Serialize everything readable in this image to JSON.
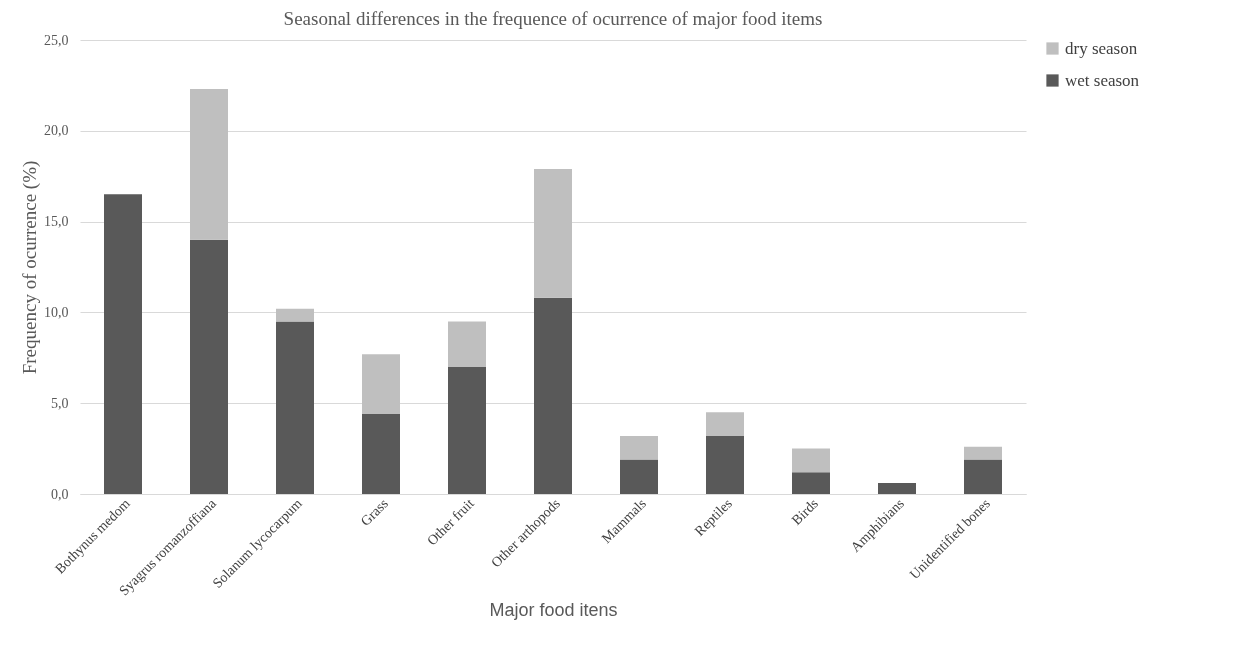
{
  "chart_data": {
    "type": "bar",
    "stacked": true,
    "title": "Seasonal differences in the frequence of ocurrence of major food items",
    "xlabel": "Major food itens",
    "ylabel": "Frequency of ocurrence (%)",
    "categories": [
      "Bothynus medom",
      "Syagrus romanzoffiana",
      "Solanum lycocarpum",
      "Grass",
      "Other fruit",
      "Other arthopods",
      "Mammals",
      "Reptiles",
      "Birds",
      "Amphibians",
      "Unidentified bones"
    ],
    "series": [
      {
        "name": "wet season",
        "color": "#595959",
        "values": [
          16.5,
          14.0,
          9.5,
          4.4,
          7.0,
          10.8,
          1.9,
          3.2,
          1.2,
          0.6,
          1.9
        ]
      },
      {
        "name": "dry season",
        "color": "#bfbfbf",
        "values": [
          0,
          8.3,
          0.7,
          3.3,
          2.5,
          7.1,
          1.3,
          1.3,
          1.3,
          0,
          0.7
        ]
      }
    ],
    "ylim": [
      0,
      25
    ],
    "yticks": [
      {
        "value": 0,
        "label": "0,0"
      },
      {
        "value": 5,
        "label": "5,0"
      },
      {
        "value": 10,
        "label": "10,0"
      },
      {
        "value": 15,
        "label": "15,0"
      },
      {
        "value": 20,
        "label": "20,0"
      },
      {
        "value": 25,
        "label": "25,0"
      }
    ],
    "grid": "y",
    "legend": "right"
  }
}
